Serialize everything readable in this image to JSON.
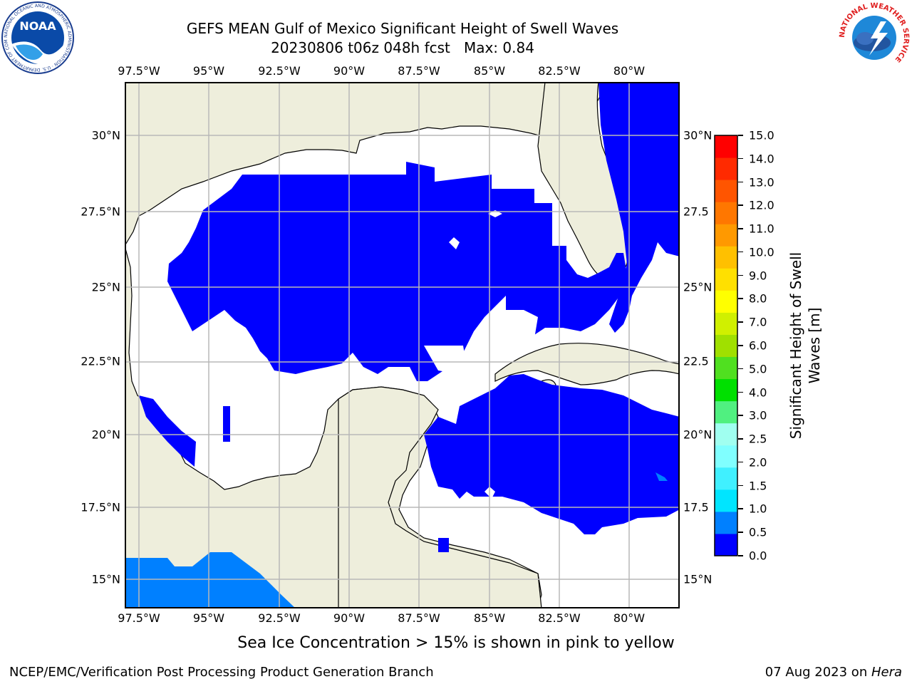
{
  "header": {
    "title_line1": "GEFS MEAN Gulf of Mexico Significant Height of Swell Waves",
    "title_line2": "20230806 t06z 048h fcst   Max: 0.84"
  },
  "logos": {
    "left_logo": "NOAA",
    "left_ring_text": "NATIONAL OCEANIC AND ATMOSPHERIC ADMINISTRATION · U.S. DEPARTMENT OF COMMERCE",
    "right_ring_text": "NATIONAL WEATHER SERVICE"
  },
  "axes": {
    "lon_labels": [
      "97.5°W",
      "95°W",
      "92.5°W",
      "90°W",
      "87.5°W",
      "85°W",
      "82.5°W",
      "80°W"
    ],
    "lat_labels_left": [
      "30°N",
      "27.5°N",
      "25°N",
      "22.5°N",
      "20°N",
      "17.5°N",
      "15°N"
    ],
    "lat_labels_right": [
      "30°N",
      "27.5",
      "25°N",
      "22.5",
      "20°N",
      "17.5",
      "15°N"
    ]
  },
  "colorbar": {
    "label": "Significant Height of Swell Waves [m]",
    "label_line1": "Significant Height of Swell",
    "label_line2": "Waves [m]",
    "ticks": [
      "0.0",
      "0.5",
      "1.0",
      "1.5",
      "2.0",
      "2.5",
      "3.0",
      "4.0",
      "5.0",
      "6.0",
      "7.0",
      "8.0",
      "9.0",
      "10.0",
      "11.0",
      "12.0",
      "13.0",
      "14.0",
      "15.0"
    ],
    "colors": [
      "#0000ff",
      "#0080ff",
      "#00e5ff",
      "#40f0ff",
      "#80ffff",
      "#a0fff0",
      "#50f080",
      "#00e000",
      "#50e020",
      "#a0e000",
      "#d0f000",
      "#ffff00",
      "#ffe000",
      "#ffc000",
      "#ff9900",
      "#ff7700",
      "#ff5500",
      "#ff2a00",
      "#ff0000"
    ]
  },
  "map": {
    "colors": {
      "land": "#eeeedc",
      "ocean_low": "#0000ff",
      "ocean_mid": "#0080ff",
      "no_data": "#ffffff",
      "grid": "#b8b8b8"
    }
  },
  "footer": {
    "note": "Sea Ice Concentration > 15% is shown in pink to yellow",
    "left": "NCEP/EMC/Verification Post Processing Product Generation Branch",
    "date": "07 Aug 2023 on ",
    "host": "Hera"
  }
}
